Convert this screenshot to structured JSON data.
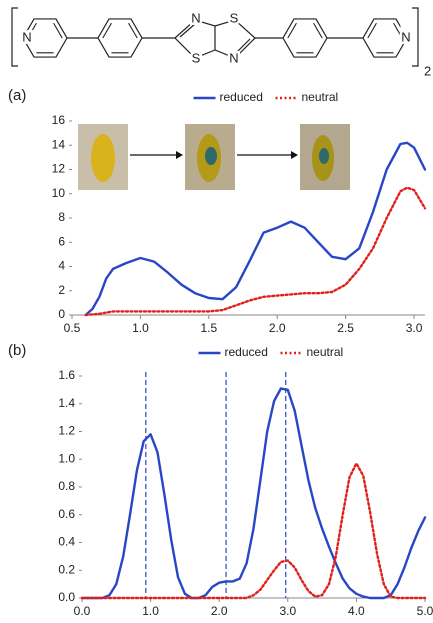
{
  "structure": {
    "atoms": [
      "N",
      "N",
      "S",
      "S",
      "N",
      "N"
    ],
    "subscript": "2"
  },
  "chart_data": [
    {
      "type": "line",
      "label": "(a)",
      "x": [
        0.6,
        0.65,
        0.7,
        0.75,
        0.8,
        0.9,
        1.0,
        1.1,
        1.2,
        1.3,
        1.4,
        1.5,
        1.6,
        1.7,
        1.8,
        1.9,
        2.0,
        2.1,
        2.2,
        2.3,
        2.4,
        2.5,
        2.6,
        2.7,
        2.8,
        2.9,
        2.95,
        3.0,
        3.08
      ],
      "series": [
        {
          "name": "reduced",
          "color": "#2846c8",
          "dash": "solid",
          "values": [
            0,
            0.5,
            1.5,
            3,
            3.8,
            4.3,
            4.7,
            4.4,
            3.5,
            2.5,
            1.8,
            1.4,
            1.3,
            2.3,
            4.5,
            6.8,
            7.2,
            7.7,
            7.2,
            6,
            4.8,
            4.6,
            5.5,
            8.5,
            12,
            14.1,
            14.2,
            13.8,
            12
          ]
        },
        {
          "name": "neutral",
          "color": "#e0201b",
          "dash": "dotted",
          "values": [
            0,
            0.05,
            0.1,
            0.2,
            0.3,
            0.3,
            0.3,
            0.3,
            0.3,
            0.3,
            0.3,
            0.3,
            0.4,
            0.8,
            1.2,
            1.5,
            1.6,
            1.7,
            1.8,
            1.8,
            1.9,
            2.5,
            3.8,
            5.5,
            8,
            10.2,
            10.5,
            10.3,
            8.8
          ]
        }
      ],
      "xlim": [
        0.5,
        3.08
      ],
      "ylim": [
        0,
        16
      ],
      "xticks": [
        {
          "value": 0.5,
          "label": "0.5"
        },
        {
          "value": 1,
          "label": "1.0"
        },
        {
          "value": 1.5,
          "label": "1.5"
        },
        {
          "value": 2,
          "label": "2.0"
        },
        {
          "value": 2.5,
          "label": "2.5"
        },
        {
          "value": 3,
          "label": "3.0"
        }
      ],
      "yticks": [
        0,
        2,
        4,
        6,
        8,
        10,
        12,
        14,
        16
      ],
      "legend": "top"
    },
    {
      "type": "line",
      "label": "(b)",
      "x": [
        0,
        0.1,
        0.2,
        0.3,
        0.4,
        0.5,
        0.6,
        0.7,
        0.8,
        0.9,
        1,
        1.1,
        1.2,
        1.3,
        1.4,
        1.5,
        1.6,
        1.7,
        1.8,
        1.9,
        2,
        2.1,
        2.2,
        2.3,
        2.4,
        2.5,
        2.6,
        2.7,
        2.8,
        2.9,
        3,
        3.1,
        3.2,
        3.3,
        3.4,
        3.5,
        3.6,
        3.7,
        3.8,
        3.9,
        4,
        4.1,
        4.2,
        4.3,
        4.4,
        4.5,
        4.6,
        4.7,
        4.8,
        4.9,
        5
      ],
      "series": [
        {
          "name": "reduced",
          "color": "#2846c8",
          "dash": "solid",
          "values": [
            0,
            0,
            0,
            0,
            0.02,
            0.1,
            0.3,
            0.6,
            0.92,
            1.13,
            1.18,
            1.05,
            0.75,
            0.42,
            0.15,
            0.03,
            0,
            0,
            0.02,
            0.08,
            0.11,
            0.12,
            0.12,
            0.14,
            0.25,
            0.5,
            0.85,
            1.2,
            1.42,
            1.51,
            1.5,
            1.35,
            1.1,
            0.85,
            0.65,
            0.5,
            0.37,
            0.25,
            0.14,
            0.07,
            0.03,
            0.01,
            0,
            0,
            0,
            0.02,
            0.1,
            0.22,
            0.36,
            0.48,
            0.58
          ]
        },
        {
          "name": "neutral",
          "color": "#e0201b",
          "dash": "dotted",
          "values": [
            0,
            0,
            0,
            0,
            0,
            0,
            0,
            0,
            0,
            0,
            0,
            0,
            0,
            0,
            0,
            0,
            0,
            0,
            0,
            0,
            0,
            0,
            0,
            0,
            0,
            0.02,
            0.06,
            0.13,
            0.2,
            0.26,
            0.27,
            0.22,
            0.13,
            0.05,
            0.01,
            0.02,
            0.1,
            0.3,
            0.6,
            0.87,
            0.97,
            0.88,
            0.62,
            0.32,
            0.1,
            0.01,
            0,
            0,
            0,
            0,
            0
          ]
        }
      ],
      "vlines": [
        0.93,
        2.1,
        2.97
      ],
      "xlim": [
        0,
        5
      ],
      "ylim": [
        0,
        1.6
      ],
      "xticks": [
        {
          "value": 0,
          "label": "0.0"
        },
        {
          "value": 1,
          "label": "1.0"
        },
        {
          "value": 2,
          "label": "2.0"
        },
        {
          "value": 3,
          "label": "3.0"
        },
        {
          "value": 4,
          "label": "4.0"
        },
        {
          "value": 5,
          "label": "5.0"
        }
      ],
      "yticks": [
        {
          "value": 0,
          "label": "0.0"
        },
        {
          "value": 0.2,
          "label": "0.2"
        },
        {
          "value": 0.4,
          "label": "0.4"
        },
        {
          "value": 0.6,
          "label": "0.6"
        },
        {
          "value": 0.8,
          "label": "0.8"
        },
        {
          "value": 1,
          "label": "1.0"
        },
        {
          "value": 1.2,
          "label": "1.2"
        },
        {
          "value": 1.4,
          "label": "1.4"
        },
        {
          "value": 1.6,
          "label": "1.6"
        }
      ],
      "legend": "top"
    }
  ]
}
